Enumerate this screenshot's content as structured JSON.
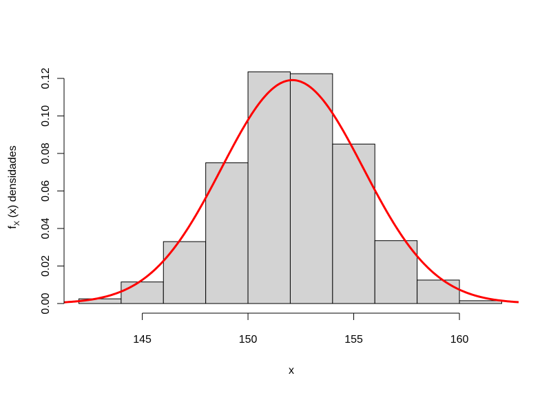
{
  "chart_data": {
    "type": "bar",
    "bin_edges": [
      142,
      144,
      146,
      148,
      150,
      152,
      154,
      156,
      158,
      160,
      162
    ],
    "values": [
      0.0025,
      0.0115,
      0.033,
      0.075,
      0.1235,
      0.1225,
      0.085,
      0.0335,
      0.0125,
      0.0015
    ],
    "xlim": [
      141.3,
      162.8
    ],
    "ylim": [
      0,
      0.124
    ],
    "x_ticks": [
      145,
      150,
      155,
      160
    ],
    "y_ticks": [
      "0.00",
      "0.02",
      "0.04",
      "0.06",
      "0.08",
      "0.10",
      "0.12"
    ],
    "xlabel": "x",
    "ylabel_prefix": "f",
    "ylabel_sub": "X",
    "ylabel_suffix": " (x)  densidades",
    "bar_fill": "#d3d3d3",
    "curve_color": "#ff0000",
    "curve": {
      "type": "normal",
      "mean": 152.1,
      "sd": 3.35
    }
  }
}
